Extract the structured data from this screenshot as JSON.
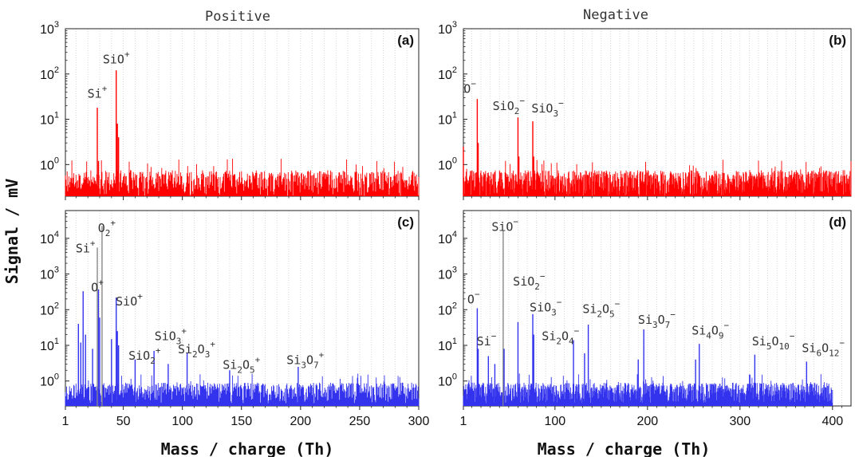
{
  "figure": {
    "ylabel": "Signal / mV",
    "xlabel": "Mass / charge (Th)",
    "column_titles": [
      "Positive",
      "Negative"
    ]
  },
  "colors": {
    "positive_top": "#ff0000",
    "negative_top": "#ff0000",
    "bottom": "#3333ee",
    "peaks_grey": "#888888"
  },
  "chart_data": [
    {
      "type": "line",
      "panel": "(a)",
      "column": "Positive",
      "xlim": [
        1,
        300
      ],
      "ylim_log": [
        0.2,
        1000
      ],
      "ylog": true,
      "xticks": [
        1,
        50,
        100,
        150,
        200,
        250,
        300
      ],
      "yticks": [
        {
          "value": 1,
          "label": "10",
          "exp": "0"
        },
        {
          "value": 10,
          "label": "10",
          "exp": "1"
        },
        {
          "value": 100,
          "label": "10",
          "exp": "2"
        },
        {
          "value": 1000,
          "label": "10",
          "exp": "3"
        }
      ],
      "noise": {
        "from": 1,
        "to": 300,
        "level": 0.5
      },
      "peaks": [
        {
          "x": 28,
          "y": 18,
          "color": "red"
        },
        {
          "x": 29,
          "y": 1.2,
          "color": "red"
        },
        {
          "x": 44,
          "y": 120,
          "color": "red"
        },
        {
          "x": 45,
          "y": 8,
          "color": "red"
        },
        {
          "x": 46,
          "y": 4,
          "color": "red"
        }
      ],
      "annotations": [
        {
          "x": 28,
          "y": 30,
          "text": "Si",
          "sub": "",
          "sup": "+"
        },
        {
          "x": 44,
          "y": 170,
          "text": "SiO",
          "sub": "",
          "sup": "+"
        }
      ]
    },
    {
      "type": "line",
      "panel": "(b)",
      "column": "Negative",
      "xlim": [
        1,
        420
      ],
      "ylim_log": [
        0.2,
        1000
      ],
      "ylog": true,
      "xticks": [
        1,
        100,
        200,
        300,
        400
      ],
      "yticks": [
        {
          "value": 1,
          "label": "10",
          "exp": "0"
        },
        {
          "value": 10,
          "label": "10",
          "exp": "1"
        },
        {
          "value": 100,
          "label": "10",
          "exp": "2"
        },
        {
          "value": 1000,
          "label": "10",
          "exp": "3"
        }
      ],
      "noise": {
        "from": 1,
        "to": 420,
        "level": 0.5
      },
      "peaks": [
        {
          "x": 1,
          "y": 2.5,
          "color": "red"
        },
        {
          "x": 16,
          "y": 28,
          "color": "red"
        },
        {
          "x": 17,
          "y": 3,
          "color": "red"
        },
        {
          "x": 60,
          "y": 11,
          "color": "red"
        },
        {
          "x": 61,
          "y": 1.5,
          "color": "red"
        },
        {
          "x": 76,
          "y": 9,
          "color": "red"
        },
        {
          "x": 77,
          "y": 1.5,
          "color": "red"
        }
      ],
      "annotations": [
        {
          "x": 8,
          "y": 38,
          "text": "O",
          "sub": "",
          "sup": "−"
        },
        {
          "x": 50,
          "y": 16,
          "text": "SiO",
          "sub": "2",
          "sup": "−"
        },
        {
          "x": 92,
          "y": 14,
          "text": "SiO",
          "sub": "3",
          "sup": "−"
        }
      ]
    },
    {
      "type": "line",
      "panel": "(c)",
      "column": "Positive",
      "xlim": [
        1,
        300
      ],
      "ylim_log": [
        0.2,
        60000
      ],
      "ylog": true,
      "xticks": [
        1,
        50,
        100,
        150,
        200,
        250,
        300
      ],
      "yticks": [
        {
          "value": 1,
          "label": "10",
          "exp": "0"
        },
        {
          "value": 10,
          "label": "10",
          "exp": "1"
        },
        {
          "value": 100,
          "label": "10",
          "exp": "2"
        },
        {
          "value": 1000,
          "label": "10",
          "exp": "3"
        },
        {
          "value": 10000,
          "label": "10",
          "exp": "4"
        }
      ],
      "noise": {
        "from": 1,
        "to": 300,
        "level": 0.6
      },
      "peaks": [
        {
          "x": 12,
          "y": 40,
          "color": "blue"
        },
        {
          "x": 14,
          "y": 12,
          "color": "blue"
        },
        {
          "x": 16,
          "y": 330,
          "color": "blue"
        },
        {
          "x": 18,
          "y": 20,
          "color": "blue"
        },
        {
          "x": 24,
          "y": 8,
          "color": "blue"
        },
        {
          "x": 28,
          "y": 5500,
          "color": "grey"
        },
        {
          "x": 29,
          "y": 370,
          "color": "blue"
        },
        {
          "x": 30,
          "y": 60,
          "color": "blue"
        },
        {
          "x": 32,
          "y": 22000,
          "color": "grey"
        },
        {
          "x": 40,
          "y": 15,
          "color": "blue"
        },
        {
          "x": 44,
          "y": 220,
          "color": "blue"
        },
        {
          "x": 45,
          "y": 25,
          "color": "blue"
        },
        {
          "x": 46,
          "y": 10,
          "color": "blue"
        },
        {
          "x": 60,
          "y": 4,
          "color": "blue"
        },
        {
          "x": 76,
          "y": 7,
          "color": "blue"
        },
        {
          "x": 88,
          "y": 3,
          "color": "blue"
        },
        {
          "x": 104,
          "y": 6,
          "color": "blue"
        },
        {
          "x": 140,
          "y": 2,
          "color": "blue"
        },
        {
          "x": 198,
          "y": 2.5,
          "color": "blue"
        }
      ],
      "annotations": [
        {
          "x": 28,
          "y": 320,
          "text": "O",
          "sub": "",
          "sup": "+"
        },
        {
          "x": 18,
          "y": 4000,
          "text": "Si",
          "sub": "",
          "sup": "+"
        },
        {
          "x": 36,
          "y": 15000,
          "text": "O",
          "sub": "2",
          "sup": "+"
        },
        {
          "x": 55,
          "y": 130,
          "text": "SiO",
          "sub": "",
          "sup": "+"
        },
        {
          "x": 68,
          "y": 4,
          "text": "SiO",
          "sub": "2",
          "sup": "+"
        },
        {
          "x": 90,
          "y": 14,
          "text": "SiO",
          "sub": "3",
          "sup": "+"
        },
        {
          "x": 112,
          "y": 6,
          "text": "Si",
          "sub": "2",
          "sup": "",
          "sub2": "O",
          "sub3": "3",
          "supEnd": "+"
        },
        {
          "x": 150,
          "y": 2.2,
          "text": "Si",
          "sub": "2",
          "sup": "",
          "sub2": "O",
          "sub3": "5",
          "supEnd": "+"
        },
        {
          "x": 204,
          "y": 3,
          "text": "Si",
          "sub": "3",
          "sup": "",
          "sub2": "O",
          "sub3": "7",
          "supEnd": "+"
        }
      ]
    },
    {
      "type": "line",
      "panel": "(d)",
      "column": "Negative",
      "xlim": [
        1,
        420
      ],
      "ylim_log": [
        0.2,
        60000
      ],
      "ylog": true,
      "xticks": [
        1,
        100,
        200,
        300,
        400
      ],
      "yticks": [
        {
          "value": 1,
          "label": "10",
          "exp": "0"
        },
        {
          "value": 10,
          "label": "10",
          "exp": "1"
        },
        {
          "value": 100,
          "label": "10",
          "exp": "2"
        },
        {
          "value": 1000,
          "label": "10",
          "exp": "3"
        },
        {
          "value": 10000,
          "label": "10",
          "exp": "4"
        }
      ],
      "noise": {
        "from": 1,
        "to": 400,
        "level": 0.6
      },
      "peaks": [
        {
          "x": 16,
          "y": 110,
          "color": "blue"
        },
        {
          "x": 17,
          "y": 8,
          "color": "blue"
        },
        {
          "x": 28,
          "y": 5,
          "color": "blue"
        },
        {
          "x": 35,
          "y": 3,
          "color": "blue"
        },
        {
          "x": 44,
          "y": 16000,
          "color": "grey"
        },
        {
          "x": 45,
          "y": 8,
          "color": "blue"
        },
        {
          "x": 60,
          "y": 45,
          "color": "blue"
        },
        {
          "x": 76,
          "y": 75,
          "color": "blue"
        },
        {
          "x": 77,
          "y": 20,
          "color": "blue"
        },
        {
          "x": 120,
          "y": 14,
          "color": "blue"
        },
        {
          "x": 136,
          "y": 38,
          "color": "blue"
        },
        {
          "x": 132,
          "y": 6,
          "color": "blue"
        },
        {
          "x": 190,
          "y": 4,
          "color": "blue"
        },
        {
          "x": 196,
          "y": 28,
          "color": "blue"
        },
        {
          "x": 256,
          "y": 11,
          "color": "blue"
        },
        {
          "x": 252,
          "y": 4,
          "color": "blue"
        },
        {
          "x": 316,
          "y": 5.5,
          "color": "blue"
        },
        {
          "x": 372,
          "y": 3.5,
          "color": "blue"
        }
      ],
      "annotations": [
        {
          "x": 12,
          "y": 150,
          "text": "O",
          "sub": "",
          "sup": "−"
        },
        {
          "x": 26,
          "y": 10,
          "text": "Si",
          "sub": "",
          "sup": "−"
        },
        {
          "x": 46,
          "y": 16000,
          "text": "SiO",
          "sub": "",
          "sup": "−"
        },
        {
          "x": 72,
          "y": 480,
          "text": "SiO",
          "sub": "2",
          "sup": "−"
        },
        {
          "x": 90,
          "y": 90,
          "text": "SiO",
          "sub": "3",
          "sup": "−"
        },
        {
          "x": 106,
          "y": 14,
          "text": "Si",
          "sub": "2",
          "sup": "",
          "sub2": "O",
          "sub3": "4",
          "supEnd": "−"
        },
        {
          "x": 150,
          "y": 80,
          "text": "Si",
          "sub": "2",
          "sup": "",
          "sub2": "O",
          "sub3": "5",
          "supEnd": "−"
        },
        {
          "x": 210,
          "y": 40,
          "text": "Si",
          "sub": "3",
          "sup": "",
          "sub2": "O",
          "sub3": "7",
          "supEnd": "−"
        },
        {
          "x": 268,
          "y": 20,
          "text": "Si",
          "sub": "4",
          "sup": "",
          "sub2": "O",
          "sub3": "9",
          "supEnd": "−"
        },
        {
          "x": 336,
          "y": 10,
          "text": "Si",
          "sub": "5",
          "sup": "",
          "sub2": "O",
          "sub3": "10",
          "supEnd": "−"
        },
        {
          "x": 390,
          "y": 6.5,
          "text": "Si",
          "sub": "6",
          "sup": "",
          "sub2": "O",
          "sub3": "12",
          "supEnd": "−"
        }
      ]
    }
  ]
}
